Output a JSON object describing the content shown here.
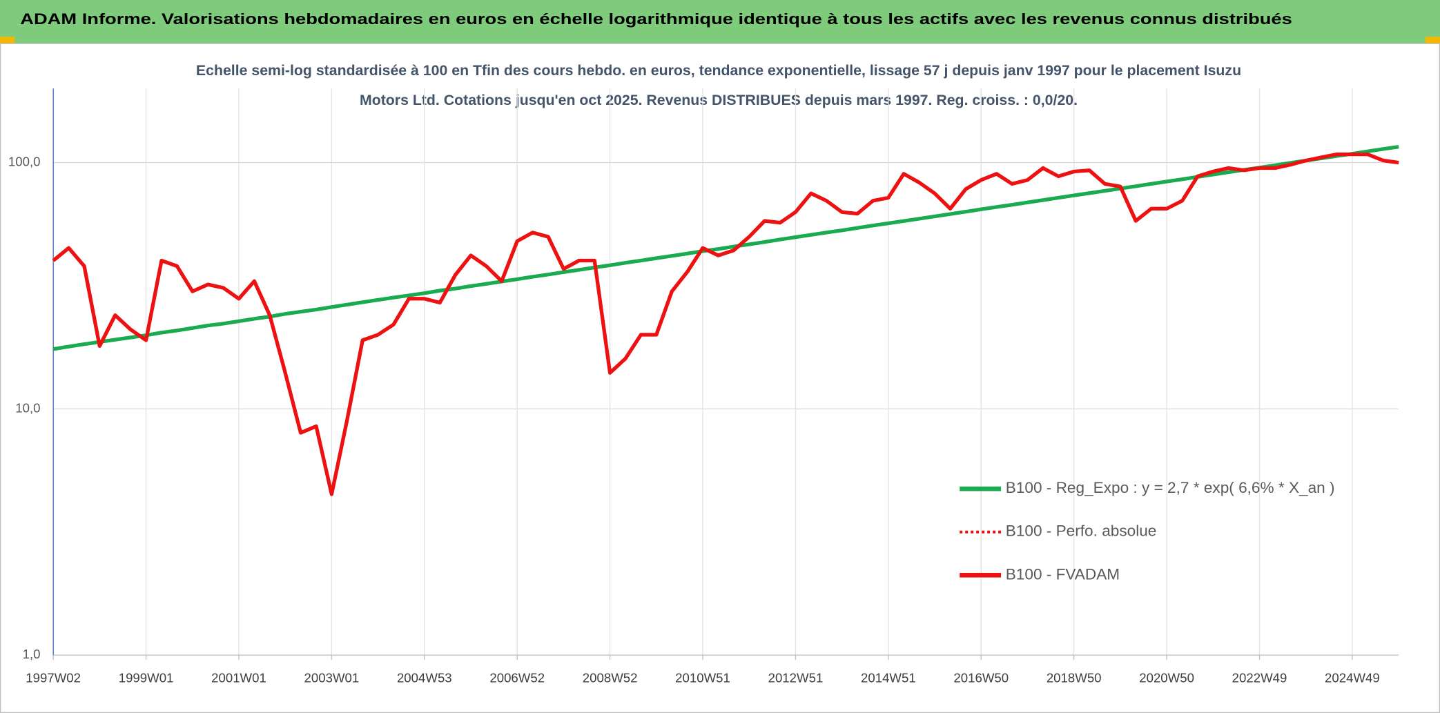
{
  "chart_data": {
    "type": "line",
    "title": "ADAM Informe. Valorisations hebdomadaires en euros en échelle logarithmique identique à tous les actifs avec les revenus connus distribués",
    "subtitle": "Echelle semi-log standardisée à 100 en Tfin des cours hebdo. en euros, tendance exponentielle, lissage 57 j depuis janv 1997 pour le placement Isuzu Motors Ltd. Cotations jusqu'en oct 2025. Revenus DISTRIBUES depuis mars 1997. Reg. croiss. : 0,0/20.",
    "categories": [
      "1997W02",
      null,
      null,
      null,
      null,
      null,
      "1999W01",
      null,
      null,
      null,
      null,
      null,
      "2001W01",
      null,
      null,
      null,
      null,
      null,
      "2003W01",
      null,
      null,
      null,
      null,
      null,
      "2004W53",
      null,
      null,
      null,
      null,
      null,
      "2006W52",
      null,
      null,
      null,
      null,
      null,
      "2008W52",
      null,
      null,
      null,
      null,
      null,
      "2010W51",
      null,
      null,
      null,
      null,
      null,
      "2012W51",
      null,
      null,
      null,
      null,
      null,
      "2014W51",
      null,
      null,
      null,
      null,
      null,
      "2016W50",
      null,
      null,
      null,
      null,
      null,
      "2018W50",
      null,
      null,
      null,
      null,
      null,
      "2020W50",
      null,
      null,
      null,
      null,
      null,
      "2022W49",
      null,
      null,
      null,
      null,
      null,
      "2024W49",
      null,
      null,
      null
    ],
    "log_scale": true,
    "ylim": [
      1,
      200
    ],
    "yticks": [
      {
        "value": 1,
        "label": "1,0"
      },
      {
        "value": 10,
        "label": "10,0"
      },
      {
        "value": 100,
        "label": "100,0"
      }
    ],
    "grid": true,
    "legend": "lower right",
    "series": [
      {
        "name": "B100 - Reg_Expo : y = 2,7 * exp( 6,6% *  X_an )",
        "color": "#1aaa50",
        "style": "solid",
        "values": [
          17.5,
          17.9,
          18.3,
          18.7,
          19.1,
          19.5,
          19.9,
          20.4,
          20.8,
          21.3,
          21.8,
          22.2,
          22.7,
          23.2,
          23.7,
          24.3,
          24.8,
          25.3,
          25.9,
          26.5,
          27.1,
          27.7,
          28.3,
          28.9,
          29.5,
          30.2,
          30.8,
          31.5,
          32.2,
          32.9,
          33.6,
          34.4,
          35.1,
          35.9,
          36.7,
          37.5,
          38.3,
          39.2,
          40.0,
          40.9,
          41.8,
          42.7,
          43.7,
          44.6,
          45.6,
          46.6,
          47.6,
          48.7,
          49.8,
          50.9,
          52.0,
          53.1,
          54.3,
          55.5,
          56.7,
          57.9,
          59.2,
          60.5,
          61.8,
          63.2,
          64.6,
          66.0,
          67.4,
          68.9,
          70.4,
          72.0,
          73.6,
          75.2,
          76.8,
          78.5,
          80.2,
          82.0,
          83.8,
          85.6,
          87.5,
          89.4,
          91.4,
          93.4,
          95.4,
          97.5,
          99.7,
          101.9,
          104.1,
          106.4,
          108.7,
          111.1,
          113.5,
          116.0
        ]
      },
      {
        "name": "B100 - Perfo. absolue",
        "color": "#ee1111",
        "style": "dotted",
        "values": [
          40,
          45,
          38,
          18,
          24,
          21,
          19,
          40,
          38,
          30,
          32,
          31,
          28,
          33,
          24,
          14,
          8,
          8.5,
          4.5,
          9,
          19,
          20,
          22,
          28,
          28,
          27,
          35,
          42,
          38,
          33,
          48,
          52,
          50,
          37,
          40,
          40,
          14,
          16,
          20,
          20,
          30,
          36,
          45,
          42,
          44,
          50,
          58,
          57,
          63,
          75,
          70,
          63,
          62,
          70,
          72,
          90,
          83,
          75,
          65,
          78,
          85,
          90,
          82,
          85,
          95,
          88,
          92,
          93,
          82,
          80,
          58,
          65,
          65,
          70,
          88,
          92,
          95,
          93,
          95,
          95,
          98,
          102,
          105,
          108,
          108,
          108,
          102,
          100
        ]
      },
      {
        "name": "B100 - FVADAM",
        "color": "#ee1111",
        "style": "solid",
        "values": [
          40,
          45,
          38,
          18,
          24,
          21,
          19,
          40,
          38,
          30,
          32,
          31,
          28,
          33,
          24,
          14,
          8,
          8.5,
          4.5,
          9,
          19,
          20,
          22,
          28,
          28,
          27,
          35,
          42,
          38,
          33,
          48,
          52,
          50,
          37,
          40,
          40,
          14,
          16,
          20,
          20,
          30,
          36,
          45,
          42,
          44,
          50,
          58,
          57,
          63,
          75,
          70,
          63,
          62,
          70,
          72,
          90,
          83,
          75,
          65,
          78,
          85,
          90,
          82,
          85,
          95,
          88,
          92,
          93,
          82,
          80,
          58,
          65,
          65,
          70,
          88,
          92,
          95,
          93,
          95,
          95,
          98,
          102,
          105,
          108,
          108,
          108,
          102,
          100
        ]
      }
    ]
  }
}
